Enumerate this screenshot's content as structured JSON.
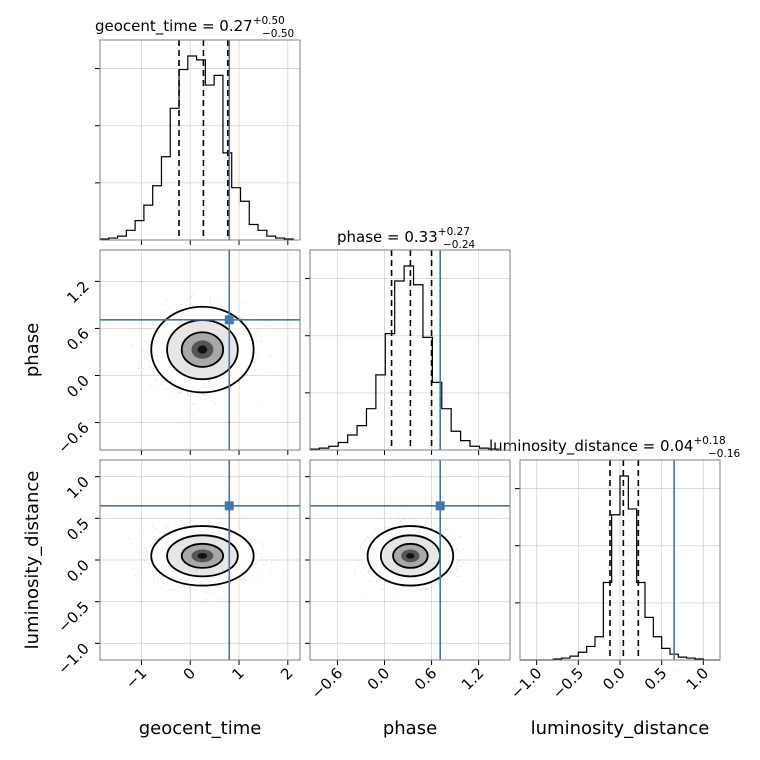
{
  "chart_data": {
    "type": "corner",
    "parameters": [
      {
        "name": "geocent_time",
        "median": 0.27,
        "plus": 0.5,
        "minus": 0.5,
        "truth": 0.8,
        "range": [
          -1.85,
          2.25
        ],
        "ticks": [
          -1,
          0,
          1,
          2
        ],
        "tick_labels": [
          "−1",
          "0",
          "1",
          "2"
        ]
      },
      {
        "name": "phase",
        "median": 0.33,
        "plus": 0.27,
        "minus": 0.24,
        "truth": 0.71,
        "range": [
          -0.95,
          1.6
        ],
        "ticks": [
          -0.6,
          0.0,
          0.6,
          1.2
        ],
        "tick_labels": [
          "−0.6",
          "0.0",
          "0.6",
          "1.2"
        ]
      },
      {
        "name": "luminosity_distance",
        "median": 0.04,
        "plus": 0.18,
        "minus": 0.16,
        "truth": 0.65,
        "range": [
          -1.2,
          1.2
        ],
        "ticks": [
          -1.0,
          -0.5,
          0.0,
          0.5,
          1.0
        ],
        "tick_labels": [
          "−1.0",
          "−0.5",
          "0.0",
          "0.5",
          "1.0"
        ]
      }
    ],
    "titles": [
      {
        "param": "geocent_time",
        "text": "geocent_time = 0.27",
        "sup": "+0.50",
        "sub": "−0.50"
      },
      {
        "param": "phase",
        "text": "phase = 0.33",
        "sup": "+0.27",
        "sub": "−0.24"
      },
      {
        "param": "luminosity_distance",
        "text": "luminosity_distance = 0.04",
        "sup": "+0.18",
        "sub": "−0.16"
      }
    ],
    "marginals": [
      {
        "param": "geocent_time",
        "quantiles": [
          -0.23,
          0.27,
          0.77
        ],
        "bin_edges": [
          -1.85,
          -1.67,
          -1.49,
          -1.31,
          -1.13,
          -0.95,
          -0.77,
          -0.59,
          -0.41,
          -0.23,
          -0.05,
          0.13,
          0.31,
          0.49,
          0.67,
          0.85,
          1.03,
          1.21,
          1.39,
          1.57,
          1.75,
          1.93,
          2.11
        ],
        "counts": [
          0.005,
          0.01,
          0.02,
          0.05,
          0.1,
          0.18,
          0.28,
          0.43,
          0.68,
          0.88,
          0.95,
          0.93,
          0.8,
          0.85,
          0.45,
          0.27,
          0.2,
          0.08,
          0.05,
          0.02,
          0.01,
          0.005
        ]
      },
      {
        "param": "phase",
        "quantiles": [
          0.09,
          0.33,
          0.6
        ],
        "bin_edges": [
          -0.95,
          -0.83,
          -0.71,
          -0.59,
          -0.47,
          -0.35,
          -0.23,
          -0.11,
          0.01,
          0.13,
          0.25,
          0.37,
          0.49,
          0.61,
          0.73,
          0.85,
          0.97,
          1.09,
          1.21,
          1.33,
          1.45
        ],
        "counts": [
          0.005,
          0.01,
          0.02,
          0.04,
          0.08,
          0.13,
          0.22,
          0.4,
          0.62,
          0.9,
          0.98,
          0.88,
          0.6,
          0.36,
          0.22,
          0.1,
          0.05,
          0.02,
          0.01,
          0.005
        ]
      },
      {
        "param": "luminosity_distance",
        "quantiles": [
          -0.12,
          0.04,
          0.22
        ],
        "bin_edges": [
          -1.2,
          -1.1,
          -1.0,
          -0.9,
          -0.8,
          -0.7,
          -0.6,
          -0.5,
          -0.4,
          -0.3,
          -0.2,
          -0.1,
          0.0,
          0.1,
          0.2,
          0.3,
          0.4,
          0.5,
          0.6,
          0.7,
          0.8,
          0.9,
          1.0,
          1.1,
          1.2
        ],
        "counts": [
          0,
          0,
          0,
          0,
          0.005,
          0.01,
          0.02,
          0.04,
          0.07,
          0.12,
          0.4,
          0.75,
          0.95,
          0.78,
          0.4,
          0.22,
          0.12,
          0.06,
          0.03,
          0.015,
          0.01,
          0.005,
          0,
          0
        ]
      }
    ],
    "pairs": [
      {
        "x": "geocent_time",
        "y": "phase",
        "center": [
          0.25,
          0.33
        ],
        "sigma": [
          0.5,
          0.26
        ]
      },
      {
        "x": "geocent_time",
        "y": "luminosity_distance",
        "center": [
          0.25,
          0.05
        ],
        "sigma": [
          0.5,
          0.17
        ]
      },
      {
        "x": "phase",
        "y": "luminosity_distance",
        "center": [
          0.33,
          0.05
        ],
        "sigma": [
          0.26,
          0.17
        ]
      }
    ],
    "truth_color": "#4477aa",
    "line_color": "#000000",
    "grid": true
  }
}
